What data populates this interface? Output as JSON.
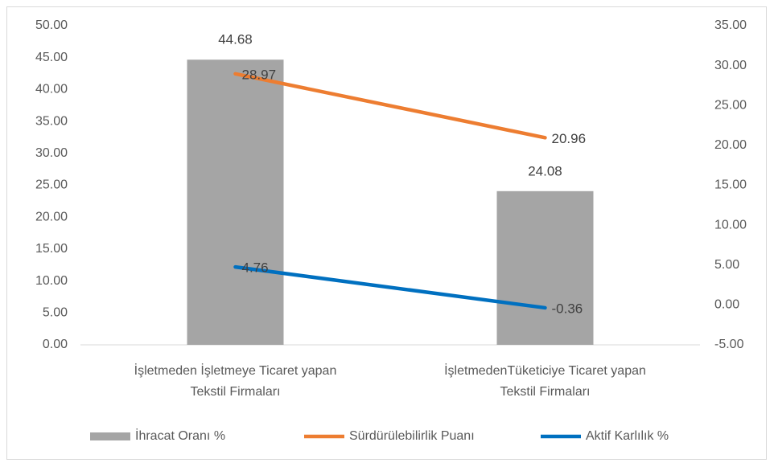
{
  "chart_data": {
    "type": "combo",
    "categories": [
      [
        "İşletmeden İşletmeye Ticaret yapan",
        "Tekstil Firmaları"
      ],
      [
        "İşletmedenTüketiciye Ticaret yapan",
        "Tekstil Firmaları"
      ]
    ],
    "series": [
      {
        "name": "İhracat Oranı %",
        "type": "bar",
        "color": "#a5a5a5",
        "values": [
          44.68,
          24.08
        ]
      },
      {
        "name": "Sürdürülebilirlik Puanı",
        "type": "line",
        "axis": "y2",
        "color": "#ed7d31",
        "values": [
          28.97,
          20.96
        ]
      },
      {
        "name": "Aktif Karlılık %",
        "type": "line",
        "axis": "y2",
        "color": "#0070c0",
        "values": [
          4.76,
          -0.36
        ]
      }
    ],
    "ylim": [
      0,
      50
    ],
    "yticks": [
      {
        "value": 0,
        "label": "0.00"
      },
      {
        "value": 5,
        "label": "5.00"
      },
      {
        "value": 10,
        "label": "10.00"
      },
      {
        "value": 15,
        "label": "15.00"
      },
      {
        "value": 20,
        "label": "20.00"
      },
      {
        "value": 25,
        "label": "25.00"
      },
      {
        "value": 30,
        "label": "30.00"
      },
      {
        "value": 35,
        "label": "35.00"
      },
      {
        "value": 40,
        "label": "40.00"
      },
      {
        "value": 45,
        "label": "45.00"
      },
      {
        "value": 50,
        "label": "50.00"
      }
    ],
    "y2lim": [
      -5,
      35
    ],
    "y2ticks": [
      {
        "value": -5,
        "label": "-5.00"
      },
      {
        "value": 0,
        "label": "0.00"
      },
      {
        "value": 5,
        "label": "5.00"
      },
      {
        "value": 10,
        "label": "10.00"
      },
      {
        "value": 15,
        "label": "15.00"
      },
      {
        "value": 20,
        "label": "20.00"
      },
      {
        "value": 25,
        "label": "25.00"
      },
      {
        "value": 30,
        "label": "30.00"
      },
      {
        "value": 35,
        "label": "35.00"
      }
    ],
    "grid": false,
    "legend": "bottom"
  }
}
